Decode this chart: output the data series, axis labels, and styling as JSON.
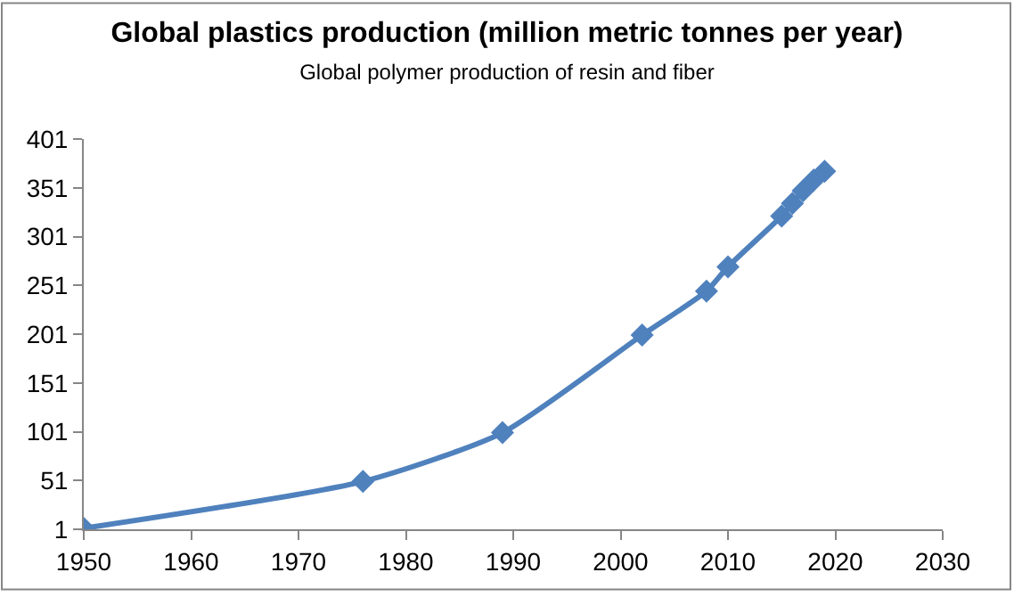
{
  "chart_data": {
    "type": "line",
    "title": "Global plastics production (million metric tonnes per year)",
    "subtitle": "Global polymer production of resin and fiber",
    "x": [
      1950,
      1976,
      1989,
      2002,
      2008,
      2010,
      2015,
      2016,
      2017,
      2018,
      2019
    ],
    "series": [
      {
        "color": "#4f81bd",
        "values": [
          2,
          50,
          100,
          200,
          245,
          270,
          322,
          335,
          348,
          359,
          368
        ]
      }
    ],
    "xlim": [
      1950,
      2030
    ],
    "xticks": [
      1950,
      1960,
      1970,
      1980,
      1990,
      2000,
      2010,
      2020,
      2030
    ],
    "ylim": [
      1,
      401
    ],
    "yticks": [
      1,
      51,
      101,
      151,
      201,
      251,
      301,
      351,
      401
    ],
    "marker": "diamond",
    "line_style": "solid"
  }
}
